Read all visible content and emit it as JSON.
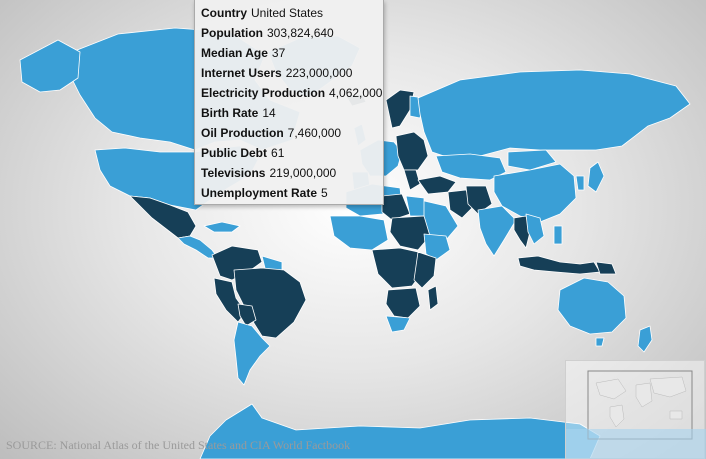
{
  "tooltip": {
    "rows": [
      {
        "label": "Country",
        "value": "United States"
      },
      {
        "label": "Population",
        "value": "303,824,640"
      },
      {
        "label": "Median Age",
        "value": "37"
      },
      {
        "label": "Internet Users",
        "value": "223,000,000"
      },
      {
        "label": "Electricity Production",
        "value": "4,062,000"
      },
      {
        "label": "Birth Rate",
        "value": "14"
      },
      {
        "label": "Oil Production",
        "value": "7,460,000"
      },
      {
        "label": "Public Debt",
        "value": "61"
      },
      {
        "label": "Televisions",
        "value": "219,000,000"
      },
      {
        "label": "Unemployment Rate",
        "value": "5"
      }
    ]
  },
  "source": "SOURCE: National Atlas of the United States and CIA World Factbook",
  "colors": {
    "land": "#3a9fd6",
    "highlight": "#163f57",
    "border": "#ffffff"
  },
  "highlighted_regions": [
    "Mexico",
    "Brazil",
    "Venezuela",
    "Colombia",
    "Ecuador",
    "Bolivia",
    "Iceland",
    "Norway",
    "Eastern Europe",
    "Libya",
    "Sudan",
    "Chad",
    "Central Africa",
    "East Africa",
    "Southern Africa",
    "Madagascar",
    "Iran",
    "Afghanistan",
    "Pakistan",
    "Thailand",
    "Myanmar",
    "Indonesia",
    "Papua New Guinea"
  ]
}
